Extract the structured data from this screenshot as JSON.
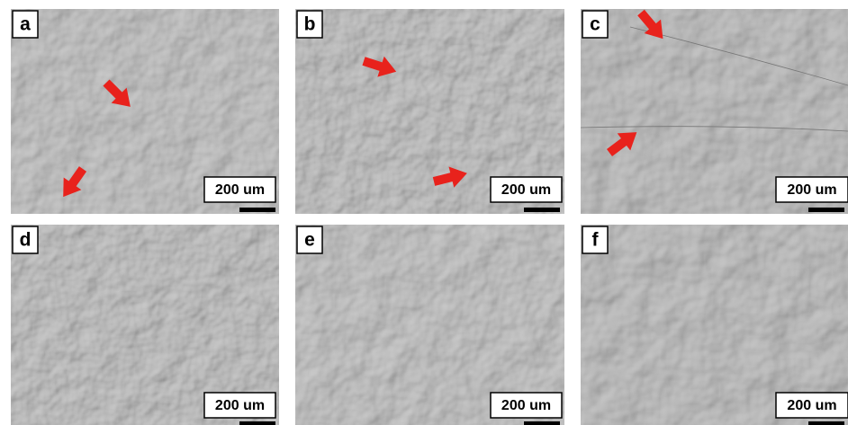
{
  "panels": [
    {
      "label": "a",
      "scale": "200 um"
    },
    {
      "label": "b",
      "scale": "200 um"
    },
    {
      "label": "c",
      "scale": "200 um"
    },
    {
      "label": "d",
      "scale": "200 um"
    },
    {
      "label": "e",
      "scale": "200 um"
    },
    {
      "label": "f",
      "scale": "200 um"
    }
  ]
}
